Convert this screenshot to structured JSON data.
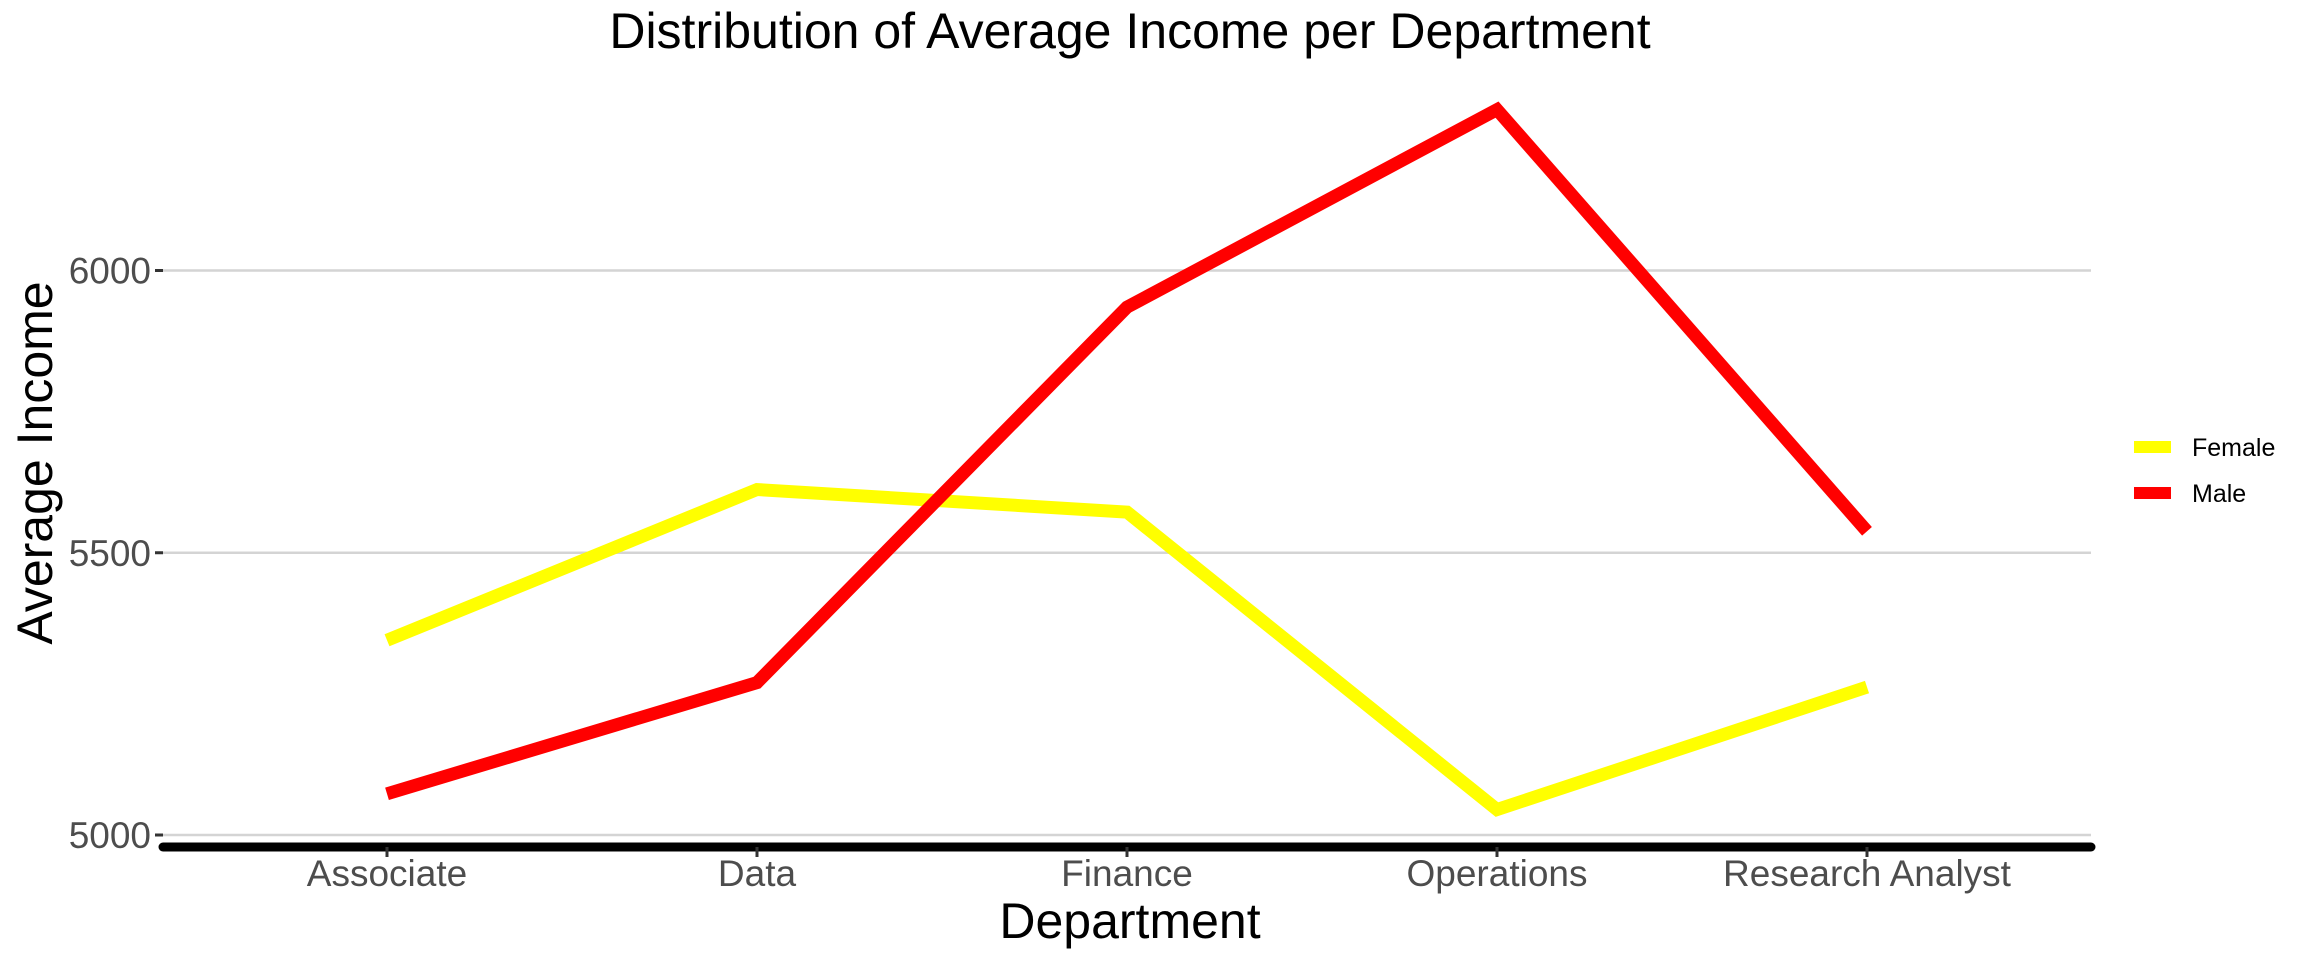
{
  "chart_data": {
    "type": "line",
    "title": "Distribution of Average Income per Department",
    "xlabel": "Department",
    "ylabel": "Average Income",
    "categories": [
      "Associate",
      "Data",
      "Finance",
      "Operations",
      "Research Analyst"
    ],
    "series": [
      {
        "name": "Female",
        "color": "#ffff00",
        "values": [
          5345,
          5612,
          5572,
          5045,
          5262
        ]
      },
      {
        "name": "Male",
        "color": "#ff0000",
        "values": [
          5073,
          5270,
          5935,
          6285,
          5538
        ]
      }
    ],
    "yticks": [
      5000,
      5500,
      6000
    ],
    "ylim": [
      5000,
      6285
    ],
    "grid": true,
    "legend_position": "right"
  }
}
